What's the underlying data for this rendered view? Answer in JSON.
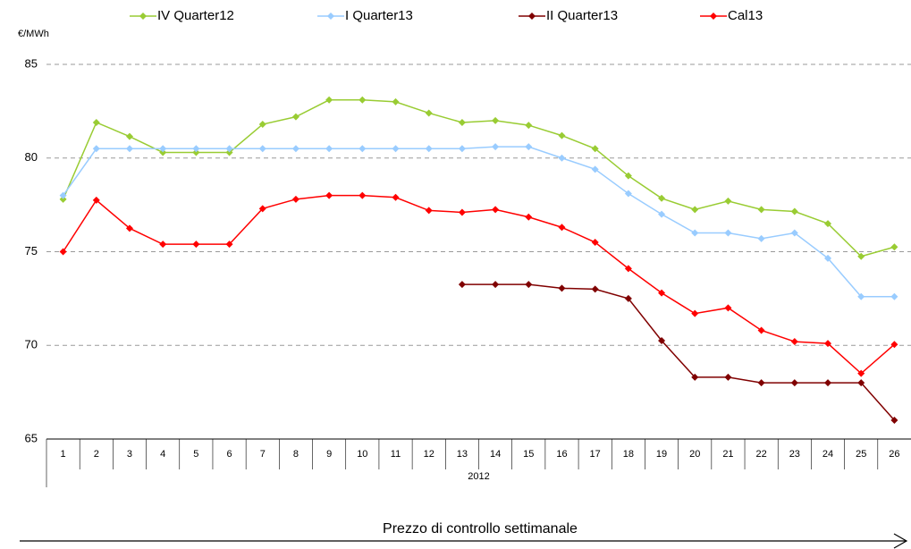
{
  "chart_data": {
    "type": "line",
    "y_unit": "€/MWh",
    "x_group": "2012",
    "footer": "Prezzo di controllo settimanale",
    "categories": [
      "1",
      "2",
      "3",
      "4",
      "5",
      "6",
      "7",
      "8",
      "9",
      "10",
      "11",
      "12",
      "13",
      "14",
      "15",
      "16",
      "17",
      "18",
      "19",
      "20",
      "21",
      "22",
      "23",
      "24",
      "25",
      "26"
    ],
    "series": [
      {
        "name": "IV Quarter12",
        "color": "#99cc33",
        "values": [
          77.8,
          81.9,
          81.15,
          80.3,
          80.3,
          80.3,
          81.8,
          82.2,
          83.1,
          83.1,
          83.0,
          82.4,
          81.9,
          82.0,
          81.75,
          81.2,
          80.5,
          79.05,
          77.85,
          77.25,
          77.7,
          77.25,
          77.15,
          76.5,
          74.75,
          75.25
        ]
      },
      {
        "name": "I Quarter13",
        "color": "#99ccff",
        "values": [
          78.0,
          80.5,
          80.5,
          80.5,
          80.5,
          80.5,
          80.5,
          80.5,
          80.5,
          80.5,
          80.5,
          80.5,
          80.5,
          80.6,
          80.6,
          80.0,
          79.4,
          78.1,
          77.0,
          76.0,
          76.0,
          75.7,
          76.0,
          74.65,
          72.6,
          72.6
        ]
      },
      {
        "name": "II Quarter13",
        "color": "#800000",
        "values": [
          null,
          null,
          null,
          null,
          null,
          null,
          null,
          null,
          null,
          null,
          null,
          null,
          73.25,
          73.25,
          73.25,
          73.05,
          73.0,
          72.5,
          70.25,
          68.3,
          68.3,
          68.0,
          68.0,
          68.0,
          68.0,
          66.0
        ]
      },
      {
        "name": "Cal13",
        "color": "#ff0000",
        "values": [
          75.0,
          77.75,
          76.25,
          75.4,
          75.4,
          75.4,
          77.3,
          77.8,
          78.0,
          78.0,
          77.9,
          77.2,
          77.1,
          77.25,
          76.85,
          76.3,
          75.5,
          74.1,
          72.8,
          71.7,
          72.0,
          70.8,
          70.2,
          70.1,
          68.5,
          70.05
        ]
      }
    ],
    "ylim": [
      65,
      85
    ],
    "yticks": [
      65,
      70,
      75,
      80,
      85
    ],
    "grid": true
  }
}
